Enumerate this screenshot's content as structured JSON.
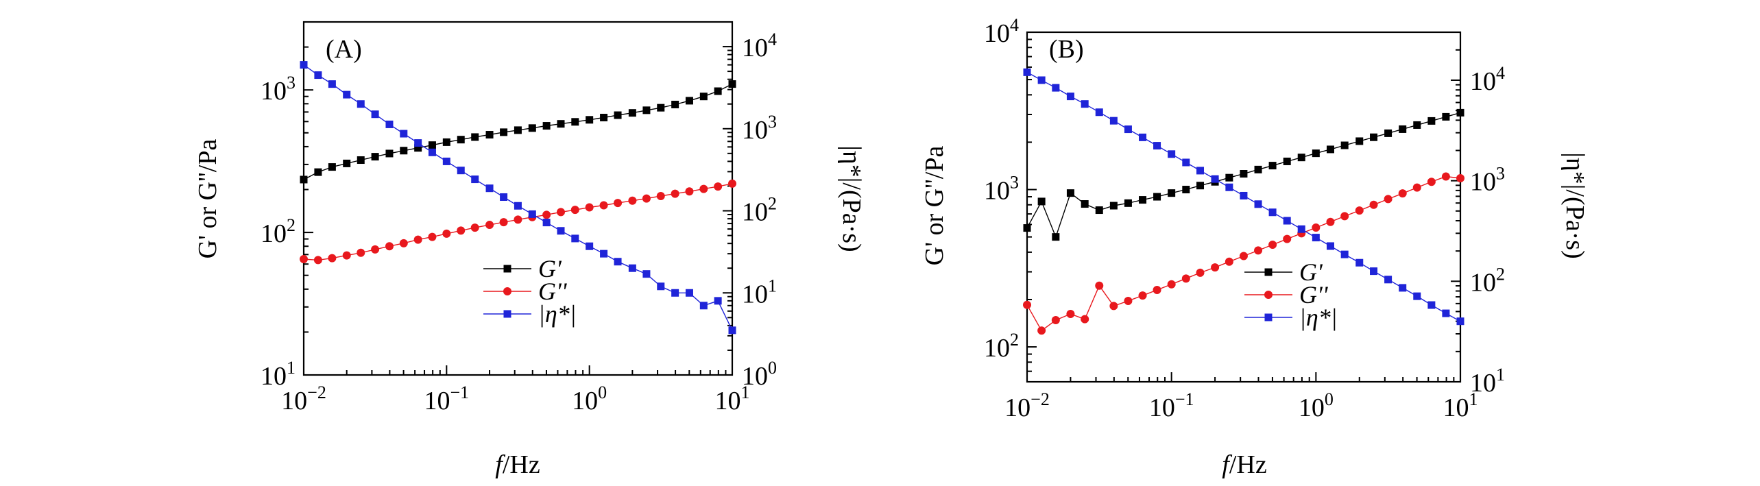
{
  "chart_data": [
    {
      "panel_label": "(A)",
      "type": "line",
      "xlabel_italic": "f",
      "xlabel_rest": "/Hz",
      "ylabel_left": "G' or G''/Pa",
      "ylabel_right": "|η*|/(Pa·s)",
      "x_log": true,
      "y_left_log": true,
      "y_right_log": true,
      "xlim": [
        0.01,
        10
      ],
      "ylim_left": [
        10,
        3000
      ],
      "ylim_right": [
        1,
        20000
      ],
      "x_ticks": [
        {
          "base": "10",
          "exp": "−2"
        },
        {
          "base": "10",
          "exp": "−1"
        },
        {
          "base": "10",
          "exp": "0"
        },
        {
          "base": "10",
          "exp": "1"
        }
      ],
      "y_left_ticks": [
        {
          "base": "10",
          "exp": "1"
        },
        {
          "base": "10",
          "exp": "2"
        },
        {
          "base": "10",
          "exp": "3"
        }
      ],
      "y_right_ticks": [
        {
          "base": "10",
          "exp": "0"
        },
        {
          "base": "10",
          "exp": "1"
        },
        {
          "base": "10",
          "exp": "2"
        },
        {
          "base": "10",
          "exp": "3"
        },
        {
          "base": "10",
          "exp": "4"
        }
      ],
      "x": [
        0.01,
        0.0126,
        0.0158,
        0.02,
        0.0251,
        0.0316,
        0.0398,
        0.0501,
        0.0631,
        0.0794,
        0.1,
        0.126,
        0.158,
        0.2,
        0.251,
        0.316,
        0.398,
        0.501,
        0.631,
        0.794,
        1,
        1.26,
        1.58,
        2,
        2.51,
        3.16,
        3.98,
        5.01,
        6.31,
        7.94,
        10
      ],
      "legend": [
        {
          "name": "G'",
          "color": "#000000",
          "marker": "square"
        },
        {
          "name": "G''",
          "color": "#e8181d",
          "marker": "circle"
        },
        {
          "name": "|η*|",
          "color": "#1f24d8",
          "marker": "square"
        }
      ],
      "series": [
        {
          "name": "G'",
          "axis": "left",
          "color": "#000000",
          "marker": "square",
          "values": [
            235,
            265,
            288,
            305,
            322,
            340,
            358,
            375,
            392,
            410,
            430,
            448,
            467,
            485,
            505,
            522,
            540,
            560,
            578,
            597,
            617,
            640,
            665,
            690,
            720,
            750,
            790,
            840,
            900,
            980,
            1100
          ]
        },
        {
          "name": "G''",
          "axis": "left",
          "color": "#e8181d",
          "marker": "circle",
          "values": [
            65,
            64,
            66,
            69,
            72,
            76,
            80,
            84,
            89,
            93,
            98,
            103,
            108,
            113,
            118,
            123,
            128,
            133,
            139,
            144,
            150,
            155,
            161,
            167,
            173,
            180,
            187,
            194,
            202,
            210,
            220
          ]
        },
        {
          "name": "|η*|",
          "axis": "right",
          "color": "#1f24d8",
          "marker": "square",
          "values": [
            6000,
            4500,
            3500,
            2600,
            2000,
            1500,
            1130,
            870,
            670,
            515,
            400,
            310,
            242,
            188,
            147,
            115,
            91,
            72,
            57,
            46,
            37,
            30,
            24,
            20,
            17,
            12,
            10,
            10,
            7,
            8,
            3.5
          ]
        }
      ]
    },
    {
      "panel_label": "(B)",
      "type": "line",
      "xlabel_italic": "f",
      "xlabel_rest": "/Hz",
      "ylabel_left": "G' or G''/Pa",
      "ylabel_right": "|η*|/(Pa·s)",
      "x_log": true,
      "y_left_log": true,
      "y_right_log": true,
      "xlim": [
        0.01,
        10
      ],
      "ylim_left": [
        60,
        10000
      ],
      "ylim_right": [
        10,
        30000
      ],
      "x_ticks": [
        {
          "base": "10",
          "exp": "−2"
        },
        {
          "base": "10",
          "exp": "−1"
        },
        {
          "base": "10",
          "exp": "0"
        },
        {
          "base": "10",
          "exp": "1"
        }
      ],
      "y_left_ticks": [
        {
          "base": "10",
          "exp": "2"
        },
        {
          "base": "10",
          "exp": "3"
        },
        {
          "base": "10",
          "exp": "4"
        }
      ],
      "y_right_ticks": [
        {
          "base": "10",
          "exp": "1"
        },
        {
          "base": "10",
          "exp": "2"
        },
        {
          "base": "10",
          "exp": "3"
        },
        {
          "base": "10",
          "exp": "4"
        }
      ],
      "x": [
        0.01,
        0.0126,
        0.0158,
        0.02,
        0.0251,
        0.0316,
        0.0398,
        0.0501,
        0.0631,
        0.0794,
        0.1,
        0.126,
        0.158,
        0.2,
        0.251,
        0.316,
        0.398,
        0.501,
        0.631,
        0.794,
        1,
        1.26,
        1.58,
        2,
        2.51,
        3.16,
        3.98,
        5.01,
        6.31,
        7.94,
        10
      ],
      "legend": [
        {
          "name": "G'",
          "color": "#000000",
          "marker": "square"
        },
        {
          "name": "G''",
          "color": "#e8181d",
          "marker": "circle"
        },
        {
          "name": "|η*|",
          "color": "#1f24d8",
          "marker": "square"
        }
      ],
      "series": [
        {
          "name": "G'",
          "axis": "left",
          "color": "#000000",
          "marker": "square",
          "values": [
            570,
            840,
            500,
            950,
            810,
            740,
            790,
            820,
            860,
            900,
            950,
            1000,
            1060,
            1120,
            1190,
            1260,
            1340,
            1420,
            1510,
            1600,
            1700,
            1800,
            1910,
            2030,
            2150,
            2280,
            2420,
            2570,
            2730,
            2900,
            3080
          ]
        },
        {
          "name": "G''",
          "axis": "left",
          "color": "#e8181d",
          "marker": "circle",
          "values": [
            185,
            127,
            148,
            162,
            150,
            245,
            182,
            196,
            212,
            230,
            250,
            272,
            296,
            320,
            348,
            378,
            410,
            446,
            485,
            527,
            573,
            623,
            677,
            736,
            800,
            870,
            945,
            1030,
            1120,
            1210,
            1180
          ]
        },
        {
          "name": "|η*|",
          "axis": "right",
          "color": "#1f24d8",
          "marker": "square",
          "values": [
            12000,
            10000,
            8400,
            6900,
            5800,
            4800,
            3950,
            3250,
            2700,
            2230,
            1840,
            1520,
            1260,
            1040,
            860,
            710,
            585,
            485,
            400,
            330,
            272,
            224,
            185,
            153,
            126,
            104,
            86,
            71,
            58,
            48,
            40
          ]
        }
      ]
    }
  ]
}
